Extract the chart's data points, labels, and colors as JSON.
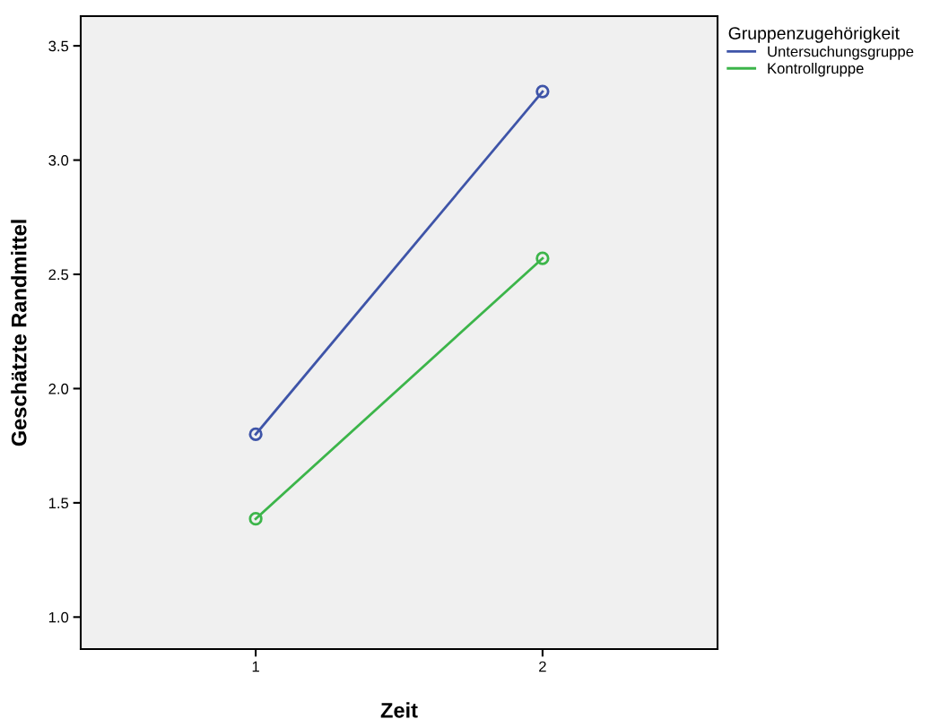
{
  "chart_data": {
    "type": "line",
    "xlabel": "Zeit",
    "ylabel": "Geschätzte Randmittel",
    "legend_title": "Gruppenzugehörigkeit",
    "x": [
      1,
      2
    ],
    "series": [
      {
        "name": "Untersuchungsgruppe",
        "color": "#3e54a8",
        "values": [
          1.8,
          3.3
        ]
      },
      {
        "name": "Kontrollgruppe",
        "color": "#3cb54a",
        "values": [
          1.43,
          2.57
        ]
      }
    ],
    "xlim": [
      0.39,
      2.61
    ],
    "xticks": [
      1,
      2
    ],
    "ylim": [
      0.86,
      3.63
    ],
    "yticks": [
      {
        "value": 1.0,
        "label": "1.0"
      },
      {
        "value": 1.5,
        "label": "1.5"
      },
      {
        "value": 2.0,
        "label": "2.0"
      },
      {
        "value": 2.5,
        "label": "2.5"
      },
      {
        "value": 3.0,
        "label": "3.0"
      },
      {
        "value": 3.5,
        "label": "3.5"
      }
    ],
    "grid": false,
    "legend": "top right",
    "marker": "circle",
    "line_style": "solid"
  }
}
